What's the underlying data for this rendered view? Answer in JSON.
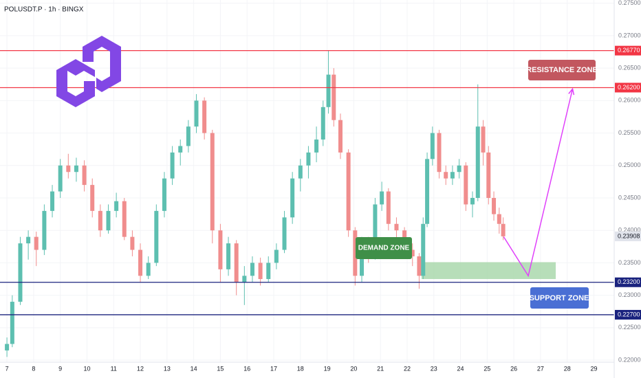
{
  "chart_data": {
    "type": "candlestick",
    "title": "POLUSDT.P · 1h · BINGX",
    "xlim": [
      6.74,
      29.76
    ],
    "xticks": [
      7,
      8,
      9,
      10,
      11,
      12,
      13,
      14,
      15,
      16,
      17,
      18,
      19,
      20,
      21,
      22,
      23,
      24,
      25,
      26,
      27,
      28,
      29
    ],
    "ylim": [
      0.2199,
      0.2755
    ],
    "yticks": [
      {
        "value": 0.22,
        "label": "0.22000"
      },
      {
        "value": 0.225,
        "label": "0.22500"
      },
      {
        "value": 0.23,
        "label": "0.23000"
      },
      {
        "value": 0.235,
        "label": "0.23500"
      },
      {
        "value": 0.24,
        "label": "0.24000"
      },
      {
        "value": 0.245,
        "label": "0.24500"
      },
      {
        "value": 0.25,
        "label": "0.25000"
      },
      {
        "value": 0.255,
        "label": "0.25500"
      },
      {
        "value": 0.26,
        "label": "0.26000"
      },
      {
        "value": 0.265,
        "label": "0.26500"
      },
      {
        "value": 0.27,
        "label": "0.27000"
      },
      {
        "value": 0.275,
        "label": "0.27500"
      }
    ],
    "up_color": "#5dbfb0",
    "down_color": "#f08d8d",
    "x": [
      7.0,
      7.2,
      7.5,
      7.8,
      8.1,
      8.4,
      8.7,
      9.0,
      9.3,
      9.6,
      9.9,
      10.2,
      10.5,
      10.8,
      11.1,
      11.4,
      11.7,
      12.0,
      12.3,
      12.6,
      12.9,
      13.2,
      13.5,
      13.8,
      14.1,
      14.4,
      14.7,
      15.0,
      15.3,
      15.6,
      15.9,
      16.2,
      16.5,
      16.8,
      17.1,
      17.4,
      17.7,
      18.0,
      18.3,
      18.6,
      18.85,
      19.05,
      19.25,
      19.5,
      19.8,
      20.05,
      20.3,
      20.55,
      20.8,
      21.05,
      21.3,
      21.6,
      21.9,
      22.2,
      22.45,
      22.6,
      22.75,
      22.95,
      23.2,
      23.45,
      23.7,
      23.95,
      24.2,
      24.45,
      24.65,
      24.85,
      25.05,
      25.25,
      25.45,
      25.6
    ],
    "open": [
      0.2215,
      0.2225,
      0.229,
      0.238,
      0.239,
      0.237,
      0.243,
      0.246,
      0.25,
      0.249,
      0.25,
      0.247,
      0.243,
      0.24,
      0.243,
      0.2445,
      0.239,
      0.237,
      0.233,
      0.235,
      0.243,
      0.248,
      0.252,
      0.253,
      0.256,
      0.26,
      0.255,
      0.24,
      0.234,
      0.238,
      0.232,
      0.233,
      0.235,
      0.2325,
      0.235,
      0.237,
      0.242,
      0.248,
      0.25,
      0.252,
      0.254,
      0.259,
      0.264,
      0.257,
      0.252,
      0.24,
      0.233,
      0.238,
      0.236,
      0.244,
      0.246,
      0.241,
      0.24,
      0.237,
      0.236,
      0.233,
      0.241,
      0.251,
      0.255,
      0.249,
      0.248,
      0.249,
      0.25,
      0.244,
      0.245,
      0.256,
      0.252,
      0.245,
      0.2425,
      0.241
    ],
    "high": [
      0.2235,
      0.23,
      0.239,
      0.24,
      0.2398,
      0.244,
      0.247,
      0.251,
      0.2518,
      0.2512,
      0.2508,
      0.248,
      0.244,
      0.244,
      0.2458,
      0.245,
      0.24,
      0.238,
      0.236,
      0.244,
      0.249,
      0.253,
      0.254,
      0.257,
      0.261,
      0.2605,
      0.2555,
      0.241,
      0.239,
      0.2385,
      0.2345,
      0.236,
      0.2358,
      0.236,
      0.238,
      0.243,
      0.249,
      0.251,
      0.253,
      0.256,
      0.26,
      0.2677,
      0.265,
      0.258,
      0.2525,
      0.2405,
      0.239,
      0.239,
      0.245,
      0.2475,
      0.2465,
      0.242,
      0.2405,
      0.238,
      0.2365,
      0.242,
      0.252,
      0.256,
      0.2555,
      0.25,
      0.25,
      0.251,
      0.2505,
      0.246,
      0.2625,
      0.257,
      0.253,
      0.246,
      0.2435,
      0.242
    ],
    "low": [
      0.2205,
      0.222,
      0.2285,
      0.2355,
      0.2345,
      0.2362,
      0.242,
      0.245,
      0.248,
      0.2475,
      0.246,
      0.242,
      0.239,
      0.2395,
      0.242,
      0.2385,
      0.236,
      0.232,
      0.2325,
      0.2345,
      0.242,
      0.247,
      0.25,
      0.252,
      0.255,
      0.254,
      0.238,
      0.232,
      0.233,
      0.23,
      0.2285,
      0.232,
      0.2315,
      0.232,
      0.234,
      0.2365,
      0.241,
      0.246,
      0.248,
      0.2505,
      0.253,
      0.258,
      0.256,
      0.251,
      0.239,
      0.2315,
      0.232,
      0.235,
      0.2355,
      0.243,
      0.24,
      0.2385,
      0.236,
      0.2345,
      0.231,
      0.2325,
      0.2405,
      0.25,
      0.248,
      0.247,
      0.247,
      0.248,
      0.243,
      0.242,
      0.2445,
      0.25,
      0.244,
      0.2415,
      0.2395,
      0.2385
    ],
    "close": [
      0.2225,
      0.229,
      0.238,
      0.239,
      0.237,
      0.243,
      0.246,
      0.25,
      0.249,
      0.25,
      0.247,
      0.243,
      0.24,
      0.243,
      0.2445,
      0.239,
      0.237,
      0.233,
      0.235,
      0.243,
      0.248,
      0.252,
      0.253,
      0.256,
      0.26,
      0.255,
      0.24,
      0.234,
      0.238,
      0.232,
      0.233,
      0.235,
      0.2325,
      0.235,
      0.237,
      0.242,
      0.248,
      0.25,
      0.252,
      0.254,
      0.259,
      0.264,
      0.257,
      0.252,
      0.24,
      0.233,
      0.238,
      0.236,
      0.244,
      0.246,
      0.241,
      0.24,
      0.237,
      0.236,
      0.233,
      0.241,
      0.251,
      0.255,
      0.249,
      0.248,
      0.249,
      0.25,
      0.244,
      0.245,
      0.256,
      0.252,
      0.245,
      0.2425,
      0.241,
      0.23908
    ],
    "levels": [
      {
        "value": 0.2677,
        "label": "0.26770",
        "color": "#f23645"
      },
      {
        "value": 0.262,
        "label": "0.26200",
        "color": "#f23645"
      },
      {
        "value": 0.232,
        "label": "0.23200",
        "color": "#1a237e"
      },
      {
        "value": 0.227,
        "label": "0.22700",
        "color": "#1a237e"
      }
    ],
    "last_price": {
      "value": 0.23908,
      "label": "0.23908"
    },
    "zone": {
      "x": [
        22.54,
        27.57
      ],
      "y": [
        0.2325,
        0.2351
      ],
      "color": "#a5d6a7"
    },
    "projection": {
      "x": [
        25.62,
        26.54,
        28.2
      ],
      "y": [
        0.239,
        0.233,
        0.2618
      ],
      "color": "#e040fb"
    },
    "annotations": [
      {
        "text": "RESISTANCE ZONE",
        "color": "#c2575f"
      },
      {
        "text": "SUPPORT ZONE",
        "color": "#4a6fd4"
      },
      {
        "text": "DEMAND ZONE",
        "color": "#3f8f48"
      }
    ]
  }
}
